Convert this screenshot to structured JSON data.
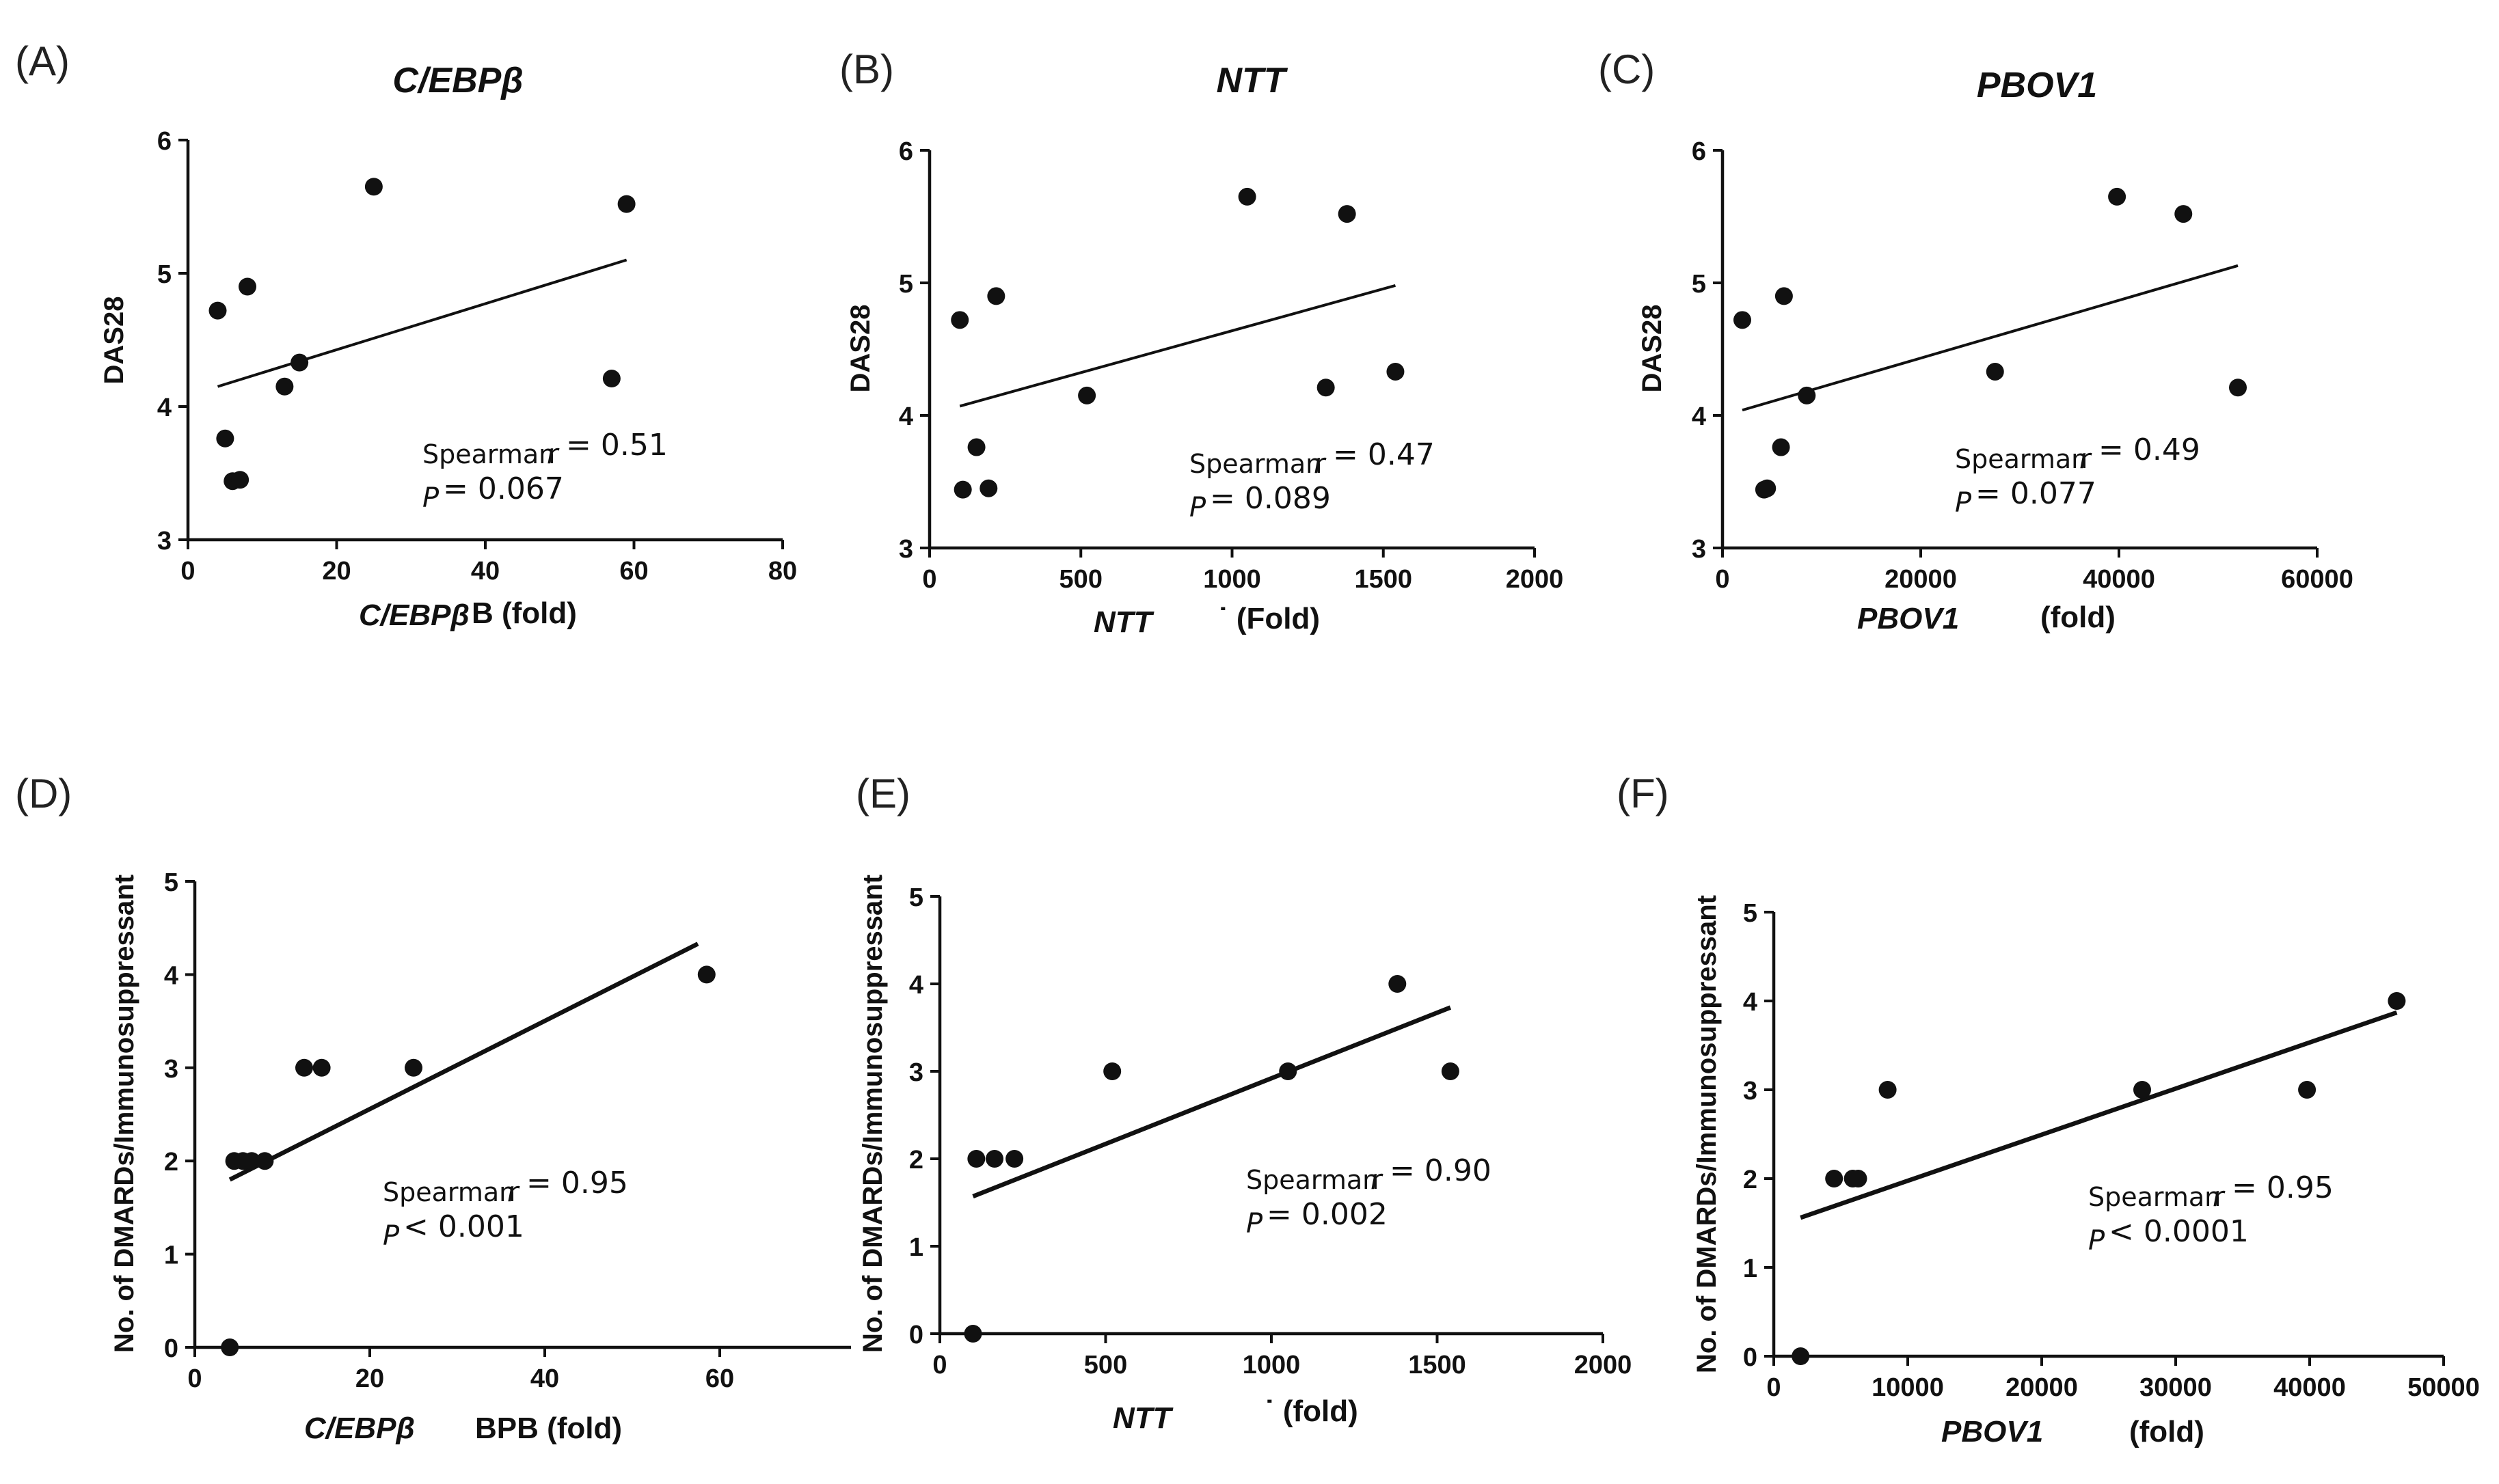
{
  "chart_data": [
    {
      "type": "scatter",
      "panel": "(A)",
      "title": "C/EBPβ",
      "xlabel": {
        "gene": "C/EBPβ",
        "suffix": "B (fold)"
      },
      "ylabel": "DAS28",
      "xlim": [
        0,
        80
      ],
      "ylim": [
        3,
        6
      ],
      "xticks": [
        0,
        20,
        40,
        60,
        80
      ],
      "yticks": [
        3,
        4,
        5,
        6
      ],
      "points": [
        [
          4,
          4.72
        ],
        [
          5,
          3.76
        ],
        [
          6,
          3.44
        ],
        [
          7,
          3.45
        ],
        [
          8,
          4.9
        ],
        [
          13,
          4.15
        ],
        [
          15,
          4.33
        ],
        [
          25,
          5.65
        ],
        [
          57,
          4.21
        ],
        [
          59,
          5.52
        ]
      ],
      "fit": [
        [
          4,
          4.15
        ],
        [
          59,
          5.1
        ]
      ],
      "stats": {
        "label": "Spearman",
        "r_symbol": "r",
        "r_value": "= 0.51",
        "p_symbol": "P",
        "p_value": "= 0.067"
      }
    },
    {
      "type": "scatter",
      "panel": "(B)",
      "title": "NTT",
      "xlabel": {
        "gene": "NTT",
        "suffix": "˙ (Fold)"
      },
      "ylabel": "DAS28",
      "xlim": [
        0,
        2000
      ],
      "ylim": [
        3,
        6
      ],
      "xticks": [
        0,
        500,
        1000,
        1500,
        2000
      ],
      "yticks": [
        3,
        4,
        5,
        6
      ],
      "points": [
        [
          100,
          4.72
        ],
        [
          110,
          3.44
        ],
        [
          155,
          3.76
        ],
        [
          195,
          3.45
        ],
        [
          220,
          4.9
        ],
        [
          520,
          4.15
        ],
        [
          1050,
          5.65
        ],
        [
          1310,
          4.21
        ],
        [
          1380,
          5.52
        ],
        [
          1540,
          4.33
        ]
      ],
      "fit": [
        [
          100,
          4.07
        ],
        [
          1540,
          4.98
        ]
      ],
      "stats": {
        "label": "Spearman",
        "r_symbol": "r",
        "r_value": "= 0.47",
        "p_symbol": "P",
        "p_value": "= 0.089"
      }
    },
    {
      "type": "scatter",
      "panel": "(C)",
      "title": "PBOV1",
      "xlabel": {
        "gene": "PBOV1",
        "suffix": "(fold)"
      },
      "ylabel": "DAS28",
      "xlim": [
        0,
        60000
      ],
      "ylim": [
        3,
        6
      ],
      "xticks": [
        0,
        20000,
        40000,
        60000
      ],
      "yticks": [
        3,
        4,
        5,
        6
      ],
      "points": [
        [
          2000,
          4.72
        ],
        [
          4200,
          3.44
        ],
        [
          4500,
          3.45
        ],
        [
          5900,
          3.76
        ],
        [
          6200,
          4.9
        ],
        [
          8500,
          4.15
        ],
        [
          27500,
          4.33
        ],
        [
          39800,
          5.65
        ],
        [
          46500,
          5.52
        ],
        [
          52000,
          4.21
        ]
      ],
      "fit": [
        [
          2000,
          4.04
        ],
        [
          52000,
          5.13
        ]
      ],
      "stats": {
        "label": "Spearman",
        "r_symbol": "r",
        "r_value": "= 0.49",
        "p_symbol": "P",
        "p_value": "= 0.077"
      }
    },
    {
      "type": "scatter",
      "panel": "(D)",
      "title": "",
      "xlabel": {
        "gene": "C/EBPβ",
        "suffix": "BPB (fold)"
      },
      "ylabel": "No. of DMARDs/Immunosuppressant",
      "xlim": [
        0,
        75
      ],
      "ylim": [
        0,
        5
      ],
      "xticks": [
        0,
        20,
        40,
        60
      ],
      "yticks": [
        0,
        1,
        2,
        3,
        4,
        5
      ],
      "points": [
        [
          4,
          0
        ],
        [
          4.5,
          2
        ],
        [
          5.5,
          2
        ],
        [
          6.5,
          2
        ],
        [
          8,
          2
        ],
        [
          12.5,
          3
        ],
        [
          14.5,
          3
        ],
        [
          25,
          3
        ],
        [
          58.5,
          4
        ]
      ],
      "fit": [
        [
          4,
          1.8
        ],
        [
          57.5,
          4.33
        ]
      ],
      "stats": {
        "label": "Spearman",
        "r_symbol": "r",
        "r_value": "= 0.95",
        "p_symbol": "P",
        "p_value": "< 0.001"
      }
    },
    {
      "type": "scatter",
      "panel": "(E)",
      "title": "",
      "xlabel": {
        "gene": "NTT",
        "suffix": "˙ (fold)"
      },
      "ylabel": "No. of DMARDs/Immunosuppressant",
      "xlim": [
        0,
        2000
      ],
      "ylim": [
        0,
        5
      ],
      "xticks": [
        0,
        500,
        1000,
        1500,
        2000
      ],
      "yticks": [
        0,
        1,
        2,
        3,
        4,
        5
      ],
      "points": [
        [
          100,
          0
        ],
        [
          110,
          2
        ],
        [
          165,
          2
        ],
        [
          225,
          2
        ],
        [
          520,
          3
        ],
        [
          1050,
          3
        ],
        [
          1380,
          4
        ],
        [
          1540,
          3
        ]
      ],
      "fit": [
        [
          100,
          1.57
        ],
        [
          1540,
          3.73
        ]
      ],
      "stats": {
        "label": "Spearman",
        "r_symbol": "r",
        "r_value": "= 0.90",
        "p_symbol": "P",
        "p_value": "= 0.002"
      }
    },
    {
      "type": "scatter",
      "panel": "(F)",
      "title": "",
      "xlabel": {
        "gene": "PBOV1",
        "suffix": "(fold)"
      },
      "ylabel": "No. of DMARDs/Immunosuppressant",
      "xlim": [
        0,
        50000
      ],
      "ylim": [
        0,
        5
      ],
      "xticks": [
        0,
        10000,
        20000,
        30000,
        40000,
        50000
      ],
      "yticks": [
        0,
        1,
        2,
        3,
        4,
        5
      ],
      "points": [
        [
          2000,
          0
        ],
        [
          4500,
          2
        ],
        [
          5900,
          2
        ],
        [
          6300,
          2
        ],
        [
          8500,
          3
        ],
        [
          27500,
          3
        ],
        [
          39800,
          3
        ],
        [
          46500,
          4
        ]
      ],
      "fit": [
        [
          2000,
          1.56
        ],
        [
          46500,
          3.87
        ]
      ],
      "stats": {
        "label": "Spearman",
        "r_symbol": "r",
        "r_value": "= 0.95",
        "p_symbol": "P",
        "p_value": "< 0.0001"
      }
    }
  ]
}
